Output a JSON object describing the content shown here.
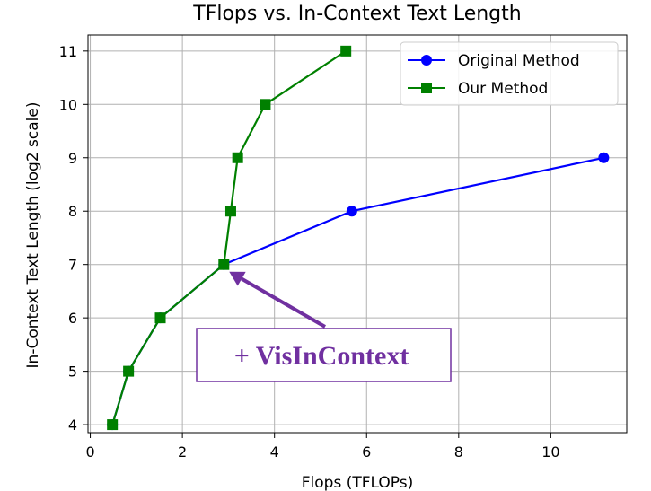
{
  "chart_data": {
    "type": "line",
    "title": "TFlops vs. In-Context Text Length",
    "xlabel": "Flops (TFLOPs)",
    "ylabel": "In-Context Text Length (log2 scale)",
    "xlim": [
      -0.05,
      11.65
    ],
    "ylim": [
      3.85,
      11.3
    ],
    "xticks": [
      0,
      2,
      4,
      6,
      8,
      10
    ],
    "yticks": [
      4,
      5,
      6,
      7,
      8,
      9,
      10,
      11
    ],
    "grid": true,
    "legend_position": "top-right",
    "series": [
      {
        "name": "Original Method",
        "color": "#0000ff",
        "marker": "circle",
        "x": [
          0.48,
          0.83,
          1.52,
          2.9,
          5.68,
          11.15
        ],
        "y": [
          4,
          5,
          6,
          7,
          8,
          9
        ]
      },
      {
        "name": "Our Method",
        "color": "#008000",
        "marker": "square",
        "x": [
          0.48,
          0.83,
          1.52,
          2.9,
          3.05,
          3.2,
          3.8,
          5.55
        ],
        "y": [
          4,
          5,
          6,
          7,
          8,
          9,
          10,
          11
        ]
      }
    ],
    "annotation": {
      "text": "+ VisInContext",
      "color": "#7030a0",
      "arrow_target": {
        "x": 2.9,
        "y": 7
      }
    }
  }
}
